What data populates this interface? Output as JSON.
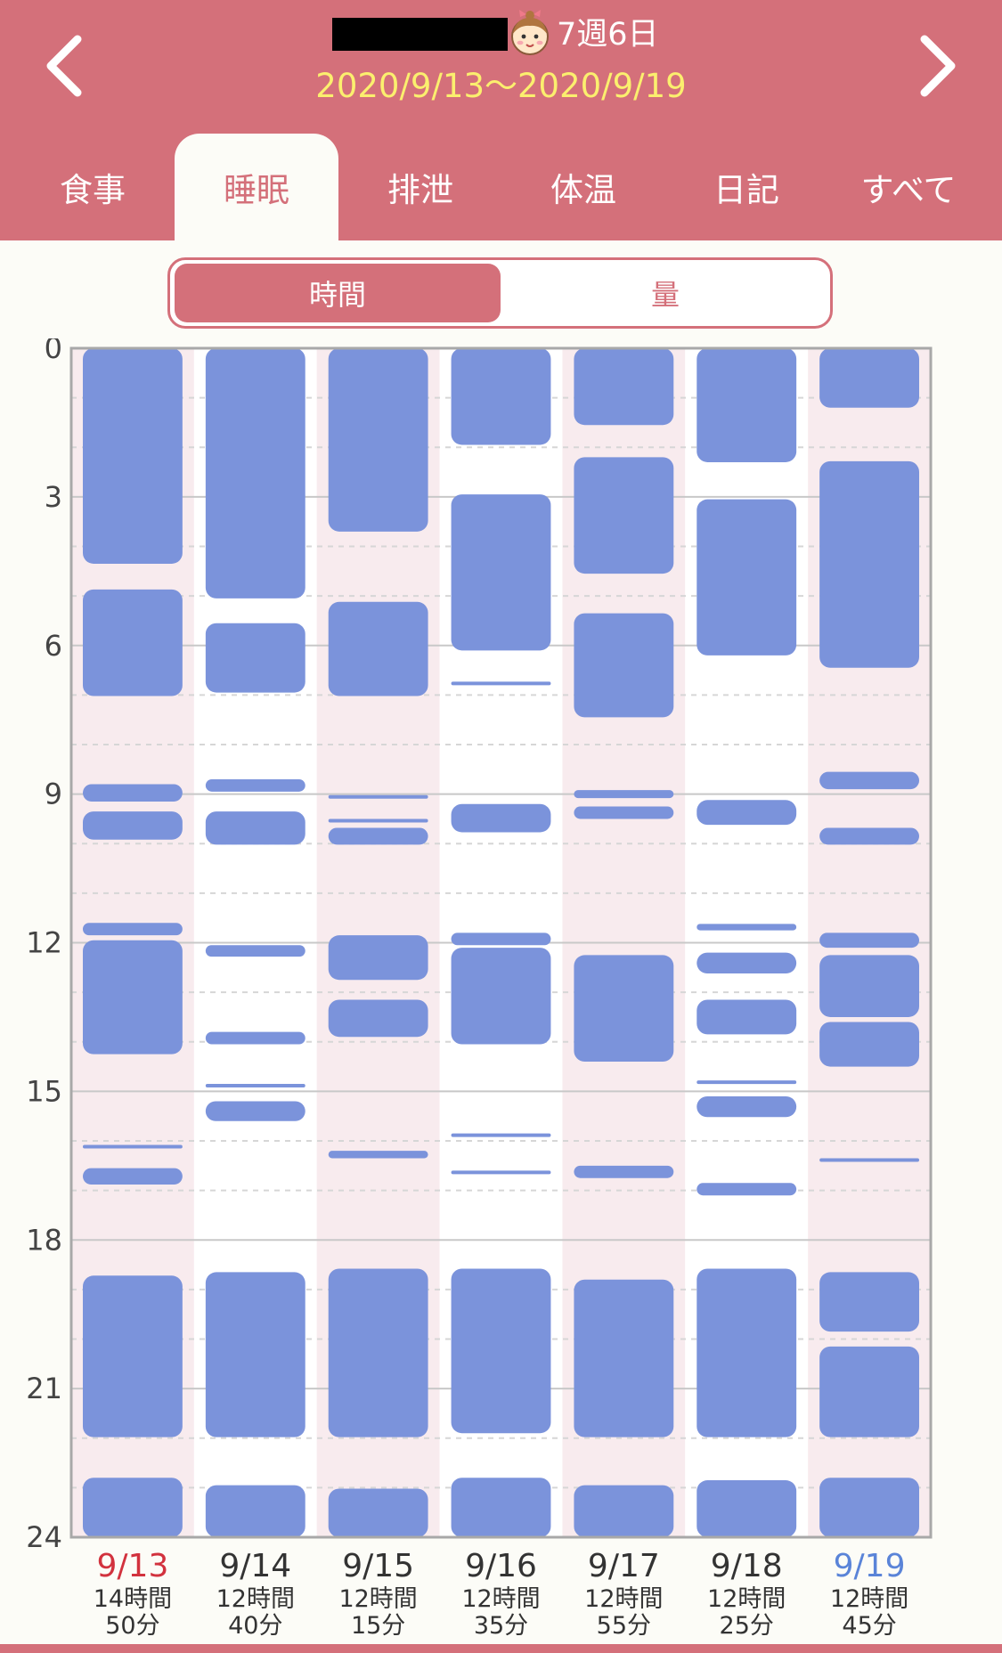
{
  "header": {
    "age": "7週6日",
    "date_range": "2020/9/13〜2020/9/19",
    "prev_icon": "chevron-left-icon",
    "next_icon": "chevron-right-icon",
    "avatar_icon": "baby-face-icon",
    "background_color": "#d4707a"
  },
  "tabs": [
    {
      "label": "食事"
    },
    {
      "label": "睡眠",
      "active": true
    },
    {
      "label": "排泄"
    },
    {
      "label": "体温"
    },
    {
      "label": "日記"
    },
    {
      "label": "すべて"
    }
  ],
  "segment": {
    "time_label": "時間",
    "amount_label": "量",
    "selected": "時間"
  },
  "chart_data": {
    "type": "timeline",
    "y_ticks": [
      "0",
      "3",
      "6",
      "9",
      "12",
      "15",
      "18",
      "21",
      "24"
    ],
    "ylim": [
      0,
      24
    ],
    "y_inverted": true,
    "bar_color": "#7b93db",
    "days": [
      {
        "date": "9/13",
        "date_color": "#d2323e",
        "total_hours": "14時間",
        "total_minutes": "50分",
        "sleeps": [
          [
            0,
            4.35
          ],
          [
            4.87,
            7.02
          ],
          [
            8.8,
            9.15
          ],
          [
            9.35,
            9.92
          ],
          [
            11.6,
            11.85
          ],
          [
            11.95,
            14.25
          ],
          [
            16.08,
            16.12
          ],
          [
            16.55,
            16.88
          ],
          [
            18.72,
            21.98
          ],
          [
            22.8,
            24
          ]
        ]
      },
      {
        "date": "9/14",
        "date_color": "#333333",
        "total_hours": "12時間",
        "total_minutes": "40分",
        "sleeps": [
          [
            0,
            5.05
          ],
          [
            5.55,
            6.95
          ],
          [
            8.7,
            8.95
          ],
          [
            9.35,
            10.02
          ],
          [
            12.05,
            12.28
          ],
          [
            13.8,
            14.05
          ],
          [
            14.85,
            14.92
          ],
          [
            15.2,
            15.6
          ],
          [
            18.65,
            21.98
          ],
          [
            22.95,
            24
          ]
        ]
      },
      {
        "date": "9/15",
        "date_color": "#333333",
        "total_hours": "12時間",
        "total_minutes": "15分",
        "sleeps": [
          [
            0,
            3.7
          ],
          [
            5.12,
            7.02
          ],
          [
            9.02,
            9.08
          ],
          [
            9.5,
            9.56
          ],
          [
            9.68,
            10.02
          ],
          [
            11.85,
            12.75
          ],
          [
            13.15,
            13.9
          ],
          [
            16.2,
            16.35
          ],
          [
            18.58,
            21.98
          ],
          [
            23.02,
            24
          ]
        ]
      },
      {
        "date": "9/16",
        "date_color": "#333333",
        "total_hours": "12時間",
        "total_minutes": "35分",
        "sleeps": [
          [
            0,
            1.95
          ],
          [
            2.95,
            6.1
          ],
          [
            6.73,
            6.79
          ],
          [
            9.2,
            9.77
          ],
          [
            11.8,
            12.05
          ],
          [
            12.1,
            14.05
          ],
          [
            15.85,
            15.91
          ],
          [
            16.6,
            16.66
          ],
          [
            18.58,
            21.9
          ],
          [
            22.8,
            24
          ]
        ]
      },
      {
        "date": "9/17",
        "date_color": "#333333",
        "total_hours": "12時間",
        "total_minutes": "55分",
        "sleeps": [
          [
            0,
            1.55
          ],
          [
            2.2,
            4.55
          ],
          [
            5.35,
            7.45
          ],
          [
            8.92,
            9.08
          ],
          [
            9.25,
            9.5
          ],
          [
            12.25,
            14.4
          ],
          [
            16.5,
            16.75
          ],
          [
            18.8,
            21.98
          ],
          [
            22.95,
            24
          ]
        ]
      },
      {
        "date": "9/18",
        "date_color": "#333333",
        "total_hours": "12時間",
        "total_minutes": "25分",
        "sleeps": [
          [
            0,
            2.3
          ],
          [
            3.05,
            6.2
          ],
          [
            9.12,
            9.62
          ],
          [
            11.62,
            11.75
          ],
          [
            12.2,
            12.62
          ],
          [
            13.15,
            13.85
          ],
          [
            14.78,
            14.84
          ],
          [
            15.1,
            15.52
          ],
          [
            16.85,
            17.1
          ],
          [
            18.58,
            21.98
          ],
          [
            22.85,
            24
          ]
        ]
      },
      {
        "date": "9/19",
        "date_color": "#5a84d8",
        "total_hours": "12時間",
        "total_minutes": "45分",
        "sleeps": [
          [
            0,
            1.2
          ],
          [
            2.28,
            6.45
          ],
          [
            8.55,
            8.9
          ],
          [
            9.68,
            10.02
          ],
          [
            11.8,
            12.1
          ],
          [
            12.25,
            13.5
          ],
          [
            13.6,
            14.5
          ],
          [
            16.35,
            16.41
          ],
          [
            18.65,
            19.85
          ],
          [
            20.15,
            21.98
          ],
          [
            22.8,
            24
          ]
        ]
      }
    ]
  }
}
